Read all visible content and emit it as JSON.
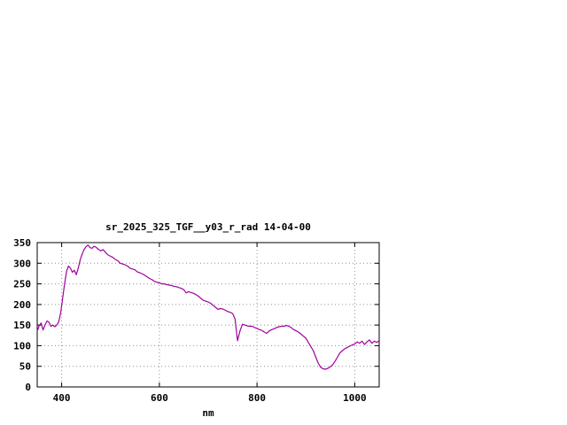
{
  "window": {
    "background": "#ffffff"
  },
  "chart_data": {
    "type": "line",
    "title": "sr_2025_325_TGF__y03_r_rad 14-04-00",
    "xlabel": "nm",
    "ylabel": "",
    "xlim": [
      350,
      1050
    ],
    "ylim": [
      0,
      350
    ],
    "xticks": [
      400,
      600,
      800,
      1000
    ],
    "yticks": [
      0,
      50,
      100,
      150,
      200,
      250,
      300,
      350
    ],
    "grid": true,
    "legend": "none",
    "colors": {
      "line": "#a000a0",
      "grid": "#909090",
      "axis": "#000000",
      "text": "#000000"
    },
    "series": [
      {
        "name": "sr_2025_325_TGF__y03_r_rad",
        "x": [
          350,
          354,
          358,
          362,
          366,
          370,
          374,
          378,
          382,
          386,
          390,
          394,
          398,
          402,
          406,
          410,
          414,
          418,
          422,
          426,
          430,
          434,
          438,
          442,
          446,
          450,
          454,
          458,
          462,
          466,
          470,
          475,
          480,
          485,
          490,
          495,
          500,
          505,
          510,
          515,
          520,
          525,
          530,
          535,
          540,
          545,
          550,
          555,
          560,
          565,
          570,
          575,
          580,
          585,
          590,
          595,
          600,
          605,
          610,
          615,
          620,
          625,
          630,
          635,
          640,
          645,
          650,
          655,
          660,
          665,
          670,
          675,
          680,
          685,
          690,
          695,
          700,
          705,
          710,
          715,
          720,
          725,
          730,
          735,
          740,
          745,
          750,
          755,
          760,
          765,
          770,
          775,
          780,
          785,
          790,
          795,
          800,
          805,
          810,
          815,
          820,
          825,
          830,
          835,
          840,
          845,
          850,
          855,
          860,
          865,
          870,
          875,
          880,
          885,
          890,
          895,
          900,
          905,
          910,
          915,
          920,
          925,
          930,
          935,
          940,
          945,
          950,
          955,
          960,
          965,
          970,
          975,
          980,
          985,
          990,
          995,
          1000,
          1005,
          1010,
          1015,
          1020,
          1025,
          1030,
          1035,
          1040,
          1045,
          1050
        ],
        "y": [
          135,
          148,
          155,
          138,
          150,
          160,
          157,
          147,
          150,
          146,
          150,
          158,
          180,
          215,
          250,
          280,
          293,
          288,
          278,
          283,
          272,
          288,
          308,
          322,
          333,
          340,
          344,
          338,
          336,
          341,
          339,
          334,
          330,
          333,
          326,
          320,
          317,
          314,
          309,
          306,
          300,
          298,
          296,
          293,
          288,
          286,
          284,
          279,
          277,
          274,
          271,
          267,
          263,
          260,
          256,
          254,
          252,
          250,
          250,
          248,
          247,
          246,
          244,
          243,
          241,
          239,
          236,
          228,
          231,
          229,
          227,
          224,
          220,
          215,
          210,
          208,
          206,
          203,
          198,
          193,
          188,
          190,
          189,
          186,
          183,
          181,
          178,
          165,
          112,
          135,
          152,
          150,
          148,
          147,
          147,
          144,
          142,
          139,
          137,
          133,
          130,
          136,
          139,
          141,
          144,
          146,
          147,
          147,
          149,
          147,
          144,
          139,
          136,
          133,
          128,
          123,
          118,
          108,
          98,
          88,
          73,
          58,
          48,
          44,
          43,
          45,
          49,
          54,
          63,
          73,
          83,
          88,
          93,
          96,
          99,
          102,
          104,
          109,
          106,
          111,
          103,
          109,
          114,
          106,
          111,
          108,
          112
        ]
      }
    ]
  }
}
